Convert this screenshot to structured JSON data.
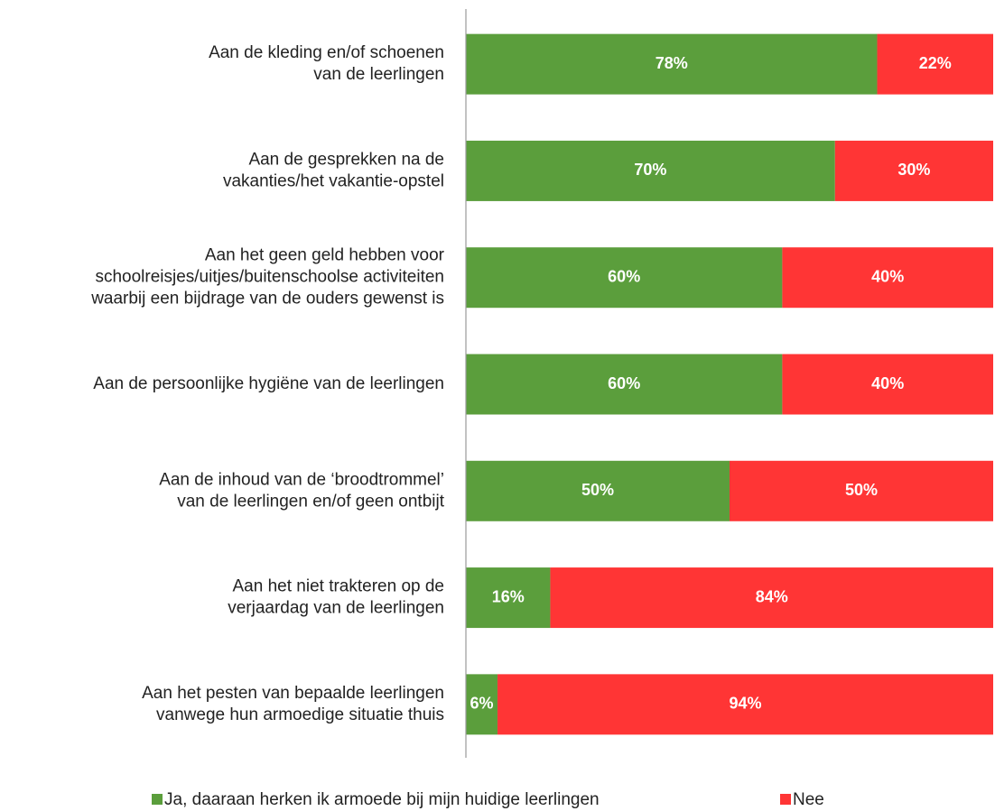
{
  "chart_data": {
    "type": "stacked-bar-horizontal",
    "categories": [
      [
        "Aan de kleding en/of schoenen",
        "van de leerlingen"
      ],
      [
        "Aan de gesprekken na de",
        "vakanties/het vakantie-opstel"
      ],
      [
        "Aan het geen geld hebben voor",
        "schoolreisjes/uitjes/buitenschoolse activiteiten",
        "waarbij een bijdrage van de ouders gewenst is"
      ],
      [
        "Aan de persoonlijke hygiëne van de leerlingen"
      ],
      [
        "Aan de inhoud van de ‘broodtrommel’",
        "van de leerlingen en/of geen ontbijt"
      ],
      [
        "Aan het niet trakteren op de",
        "verjaardag van de leerlingen"
      ],
      [
        "Aan het pesten van bepaalde leerlingen",
        "vanwege hun armoedige situatie thuis"
      ]
    ],
    "series": [
      {
        "name": "Ja, daaraan herken ik armoede bij mijn huidige leerlingen",
        "color": "#5b9e3c",
        "values": [
          78,
          70,
          60,
          60,
          50,
          16,
          6
        ],
        "value_labels": [
          "78%",
          "70%",
          "60%",
          "60%",
          "50%",
          "16%",
          "6%"
        ]
      },
      {
        "name": "Nee",
        "color": "#ff3535",
        "values": [
          22,
          30,
          40,
          40,
          50,
          84,
          94
        ],
        "value_labels": [
          "22%",
          "30%",
          "40%",
          "40%",
          "50%",
          "84%",
          "94%"
        ]
      }
    ],
    "xlim": [
      0,
      100
    ]
  }
}
